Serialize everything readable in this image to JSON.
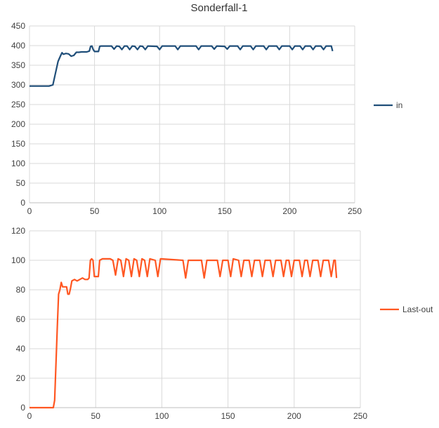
{
  "title": "Sonderfall-1",
  "colors": {
    "in": "#1f4e79",
    "last_out": "#ff5722",
    "grid": "#d9d9d9",
    "axis": "#bfbfbf"
  },
  "chart_data": [
    {
      "type": "line",
      "title": "Sonderfall-1",
      "xlabel": "",
      "ylabel": "",
      "xlim": [
        0,
        250
      ],
      "ylim": [
        0,
        450
      ],
      "xticks": [
        "0",
        "50",
        "100",
        "150",
        "200",
        "250"
      ],
      "yticks": [
        "0",
        "50",
        "100",
        "150",
        "200",
        "250",
        "300",
        "350",
        "400",
        "450"
      ],
      "grid": true,
      "legend": "right",
      "series": [
        {
          "name": "in",
          "color": "#1f4e79",
          "points": [
            [
              0,
              297
            ],
            [
              15,
              297
            ],
            [
              18,
              300
            ],
            [
              20,
              330
            ],
            [
              22,
              360
            ],
            [
              24,
              375
            ],
            [
              25,
              382
            ],
            [
              26,
              378
            ],
            [
              28,
              380
            ],
            [
              30,
              379
            ],
            [
              32,
              373
            ],
            [
              34,
              375
            ],
            [
              36,
              383
            ],
            [
              38,
              383
            ],
            [
              40,
              384
            ],
            [
              42,
              384
            ],
            [
              44,
              384
            ],
            [
              46,
              386
            ],
            [
              47,
              398
            ],
            [
              48,
              399
            ],
            [
              49,
              390
            ],
            [
              50,
              385
            ],
            [
              53,
              385
            ],
            [
              54,
              398
            ],
            [
              55,
              399
            ],
            [
              63,
              399
            ],
            [
              65,
              391
            ],
            [
              67,
              399
            ],
            [
              69,
              398
            ],
            [
              71,
              390
            ],
            [
              73,
              399
            ],
            [
              75,
              399
            ],
            [
              77,
              390
            ],
            [
              79,
              399
            ],
            [
              81,
              398
            ],
            [
              83,
              390
            ],
            [
              85,
              399
            ],
            [
              87,
              398
            ],
            [
              89,
              390
            ],
            [
              91,
              399
            ],
            [
              98,
              398
            ],
            [
              100,
              390
            ],
            [
              102,
              399
            ],
            [
              112,
              399
            ],
            [
              114,
              390
            ],
            [
              116,
              399
            ],
            [
              128,
              399
            ],
            [
              130,
              390
            ],
            [
              132,
              399
            ],
            [
              140,
              399
            ],
            [
              142,
              391
            ],
            [
              144,
              399
            ],
            [
              150,
              398
            ],
            [
              152,
              391
            ],
            [
              154,
              399
            ],
            [
              160,
              399
            ],
            [
              162,
              390
            ],
            [
              164,
              399
            ],
            [
              170,
              399
            ],
            [
              172,
              390
            ],
            [
              174,
              399
            ],
            [
              180,
              399
            ],
            [
              182,
              390
            ],
            [
              184,
              399
            ],
            [
              190,
              399
            ],
            [
              192,
              390
            ],
            [
              194,
              399
            ],
            [
              200,
              399
            ],
            [
              202,
              390
            ],
            [
              204,
              399
            ],
            [
              208,
              399
            ],
            [
              210,
              390
            ],
            [
              212,
              399
            ],
            [
              216,
              399
            ],
            [
              218,
              390
            ],
            [
              220,
              399
            ],
            [
              224,
              399
            ],
            [
              226,
              390
            ],
            [
              228,
              399
            ],
            [
              232,
              399
            ],
            [
              233,
              386
            ]
          ]
        },
        {
          "name": "Last-out",
          "color": "#ff5722",
          "points": [
            [
              0,
              0
            ],
            [
              16,
              0
            ],
            [
              18,
              0
            ],
            [
              19,
              5
            ],
            [
              20,
              30
            ],
            [
              21,
              55
            ],
            [
              22,
              77
            ],
            [
              23,
              80
            ],
            [
              24,
              85
            ],
            [
              25,
              82
            ],
            [
              28,
              82
            ],
            [
              29,
              77
            ],
            [
              30,
              77
            ],
            [
              31,
              81
            ],
            [
              32,
              86
            ],
            [
              34,
              87
            ],
            [
              36,
              86
            ],
            [
              38,
              87
            ],
            [
              40,
              88
            ],
            [
              42,
              87
            ],
            [
              44,
              87
            ],
            [
              45,
              88
            ],
            [
              46,
              100
            ],
            [
              47,
              101
            ],
            [
              48,
              100
            ],
            [
              49,
              89
            ],
            [
              52,
              89
            ],
            [
              53,
              100
            ],
            [
              55,
              101
            ],
            [
              61,
              101
            ],
            [
              63,
              100
            ],
            [
              65,
              90
            ],
            [
              67,
              101
            ],
            [
              69,
              100
            ],
            [
              71,
              89
            ],
            [
              73,
              101
            ],
            [
              75,
              100
            ],
            [
              77,
              89
            ],
            [
              79,
              101
            ],
            [
              81,
              100
            ],
            [
              83,
              89
            ],
            [
              85,
              101
            ],
            [
              87,
              100
            ],
            [
              89,
              89
            ],
            [
              91,
              101
            ],
            [
              95,
              100
            ],
            [
              97,
              89
            ],
            [
              99,
              101
            ],
            [
              116,
              100
            ],
            [
              118,
              88
            ],
            [
              120,
              100
            ],
            [
              130,
              100
            ],
            [
              132,
              88
            ],
            [
              134,
              100
            ],
            [
              142,
              100
            ],
            [
              144,
              89
            ],
            [
              146,
              100
            ],
            [
              150,
              100
            ],
            [
              152,
              89
            ],
            [
              154,
              101
            ],
            [
              158,
              100
            ],
            [
              160,
              89
            ],
            [
              162,
              100
            ],
            [
              166,
              100
            ],
            [
              168,
              89
            ],
            [
              170,
              100
            ],
            [
              174,
              100
            ],
            [
              176,
              89
            ],
            [
              178,
              100
            ],
            [
              182,
              100
            ],
            [
              184,
              89
            ],
            [
              186,
              100
            ],
            [
              190,
              100
            ],
            [
              192,
              89
            ],
            [
              194,
              100
            ],
            [
              196,
              100
            ],
            [
              198,
              89
            ],
            [
              200,
              100
            ],
            [
              204,
              100
            ],
            [
              206,
              89
            ],
            [
              208,
              100
            ],
            [
              210,
              100
            ],
            [
              212,
              89
            ],
            [
              214,
              100
            ],
            [
              218,
              100
            ],
            [
              220,
              89
            ],
            [
              222,
              100
            ],
            [
              226,
              100
            ],
            [
              228,
              89
            ],
            [
              230,
              100
            ],
            [
              231,
              100
            ],
            [
              232,
              88
            ]
          ]
        }
      ]
    },
    {
      "type": "line",
      "xlim": [
        0,
        250
      ],
      "ylim": [
        0,
        120
      ],
      "xticks": [
        "0",
        "50",
        "100",
        "150",
        "200",
        "250"
      ],
      "yticks": [
        "0",
        "20",
        "40",
        "60",
        "80",
        "100",
        "120"
      ],
      "grid": true,
      "legend": "right",
      "series_ref": "Last-out"
    }
  ]
}
